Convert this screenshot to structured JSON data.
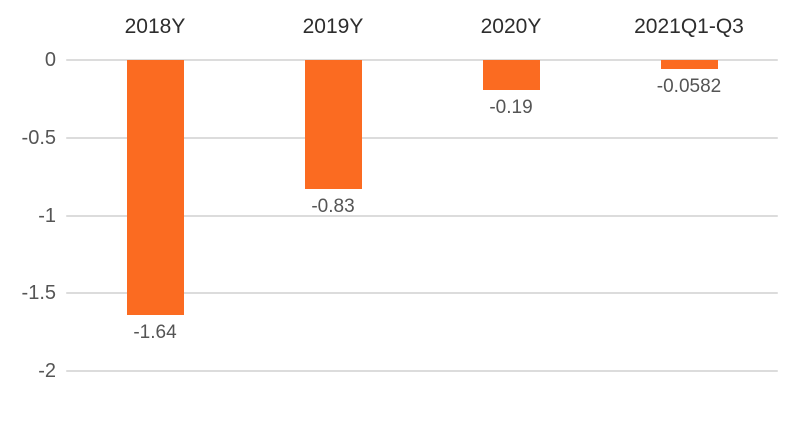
{
  "chart_data": {
    "type": "bar",
    "categories": [
      "2018Y",
      "2019Y",
      "2020Y",
      "2021Q1-Q3"
    ],
    "values": [
      -1.64,
      -0.83,
      -0.19,
      -0.0582
    ],
    "value_labels": [
      "-1.64",
      "-0.83",
      "-0.19",
      "-0.0582"
    ],
    "title": "",
    "xlabel": "",
    "ylabel": "",
    "ylim": [
      -2,
      0
    ],
    "y_ticks": [
      0,
      -0.5,
      -1,
      -1.5,
      -2
    ],
    "y_tick_labels": [
      "0",
      "-0.5",
      "-1",
      "-1.5",
      "-2"
    ],
    "grid": true,
    "legend": "none",
    "category_label_position": "top",
    "value_label_position": "below-bar",
    "colors": {
      "bar": "#fb6b21",
      "gridline": "#dcdcdc",
      "category_label": "#2d2d2d",
      "tick_label": "#555555",
      "value_label": "#555555",
      "background": "#ffffff"
    }
  }
}
